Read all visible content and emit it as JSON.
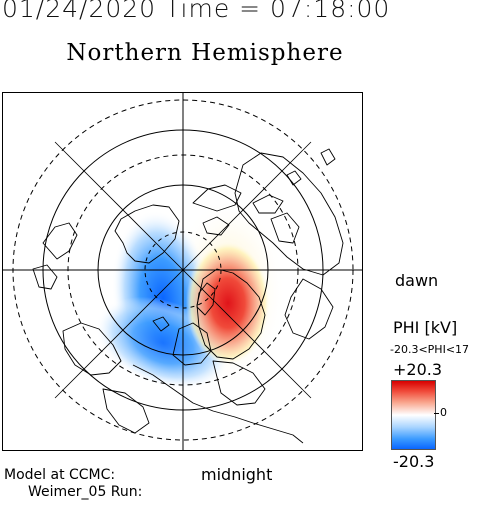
{
  "header": {
    "timestamp": "01/24/2020 Time = 07:18:00",
    "title": "Northern Hemisphere"
  },
  "map": {
    "orientation_labels": {
      "dawn": "dawn",
      "midnight": "midnight"
    },
    "dusk_cell_color": "#0a66ff",
    "dawn_cell_color": "#e0141a"
  },
  "colorbar": {
    "title": "PHI [kV]",
    "range_text": "-20.3<PHI<17",
    "max_label": "+20.3",
    "zero_label": "0",
    "min_label": "-20.3",
    "colors": {
      "max": "#d80000",
      "zero": "#ffffff",
      "min": "#0a66ff"
    }
  },
  "footer": {
    "line1": "Model at CCMC:",
    "line2": "Weimer_05 Run:"
  }
}
